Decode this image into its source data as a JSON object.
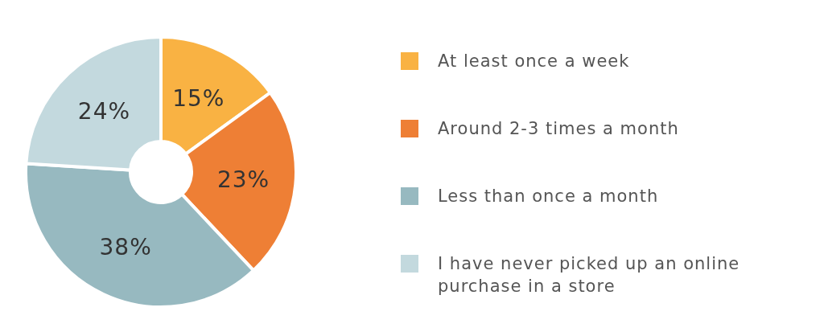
{
  "chart_data": {
    "type": "donut",
    "categories": [
      "At least once a week",
      "Around 2-3 times a month",
      "Less than once a month",
      "I have never picked up an online purchase in a store"
    ],
    "values": [
      15,
      23,
      38,
      24
    ],
    "value_labels": [
      "15%",
      "23%",
      "38%",
      "24%"
    ],
    "colors": [
      "#f9b243",
      "#ee7f35",
      "#97b9c0",
      "#c3d9de"
    ],
    "legend": "right"
  }
}
